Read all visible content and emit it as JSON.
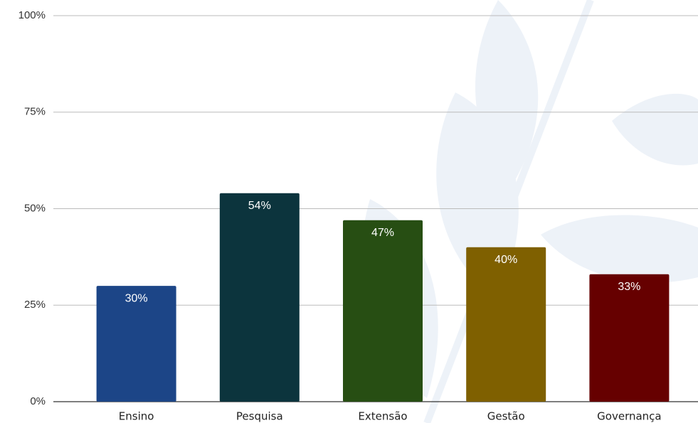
{
  "chart_data": {
    "type": "bar",
    "categories": [
      "Ensino",
      "Pesquisa",
      "Extensão",
      "Gestão",
      "Governança"
    ],
    "values": [
      30,
      54,
      47,
      40,
      33
    ],
    "value_labels": [
      "30%",
      "54%",
      "47%",
      "40%",
      "33%"
    ],
    "colors": [
      "#1c4587",
      "#0c343d",
      "#274e13",
      "#7f6000",
      "#660000"
    ],
    "ylim": [
      0,
      100
    ],
    "yticks": [
      {
        "value": 0,
        "label": "0%"
      },
      {
        "value": 25,
        "label": "25%"
      },
      {
        "value": 50,
        "label": "50%"
      },
      {
        "value": 75,
        "label": "75%"
      },
      {
        "value": 100,
        "label": "100%"
      }
    ],
    "grid": true
  }
}
